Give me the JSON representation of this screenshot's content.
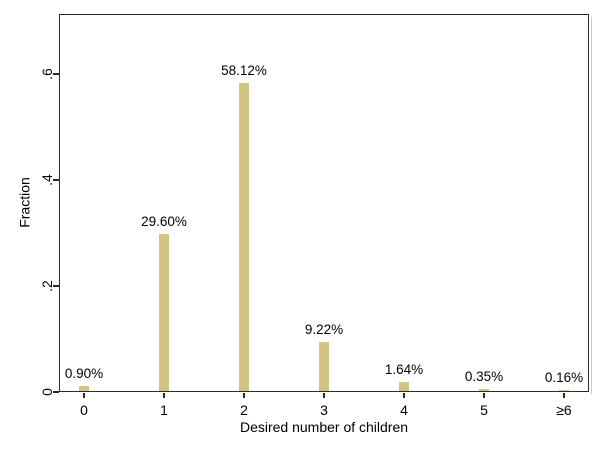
{
  "chart_data": {
    "type": "bar",
    "title": "",
    "categories": [
      "0",
      "1",
      "2",
      "3",
      "4",
      "5",
      "≥6"
    ],
    "values": [
      0.009,
      0.296,
      0.5812,
      0.0922,
      0.0164,
      0.0035,
      0.0016
    ],
    "bar_labels": [
      "0.90%",
      "29.60%",
      "58.12%",
      "9.22%",
      "1.64%",
      "0.35%",
      "0.16%"
    ],
    "xlabel": "Desired number of children",
    "ylabel": "Fraction",
    "yticks": [
      0,
      0.2,
      0.4,
      0.6
    ],
    "ytick_labels": [
      "0",
      ".2",
      ".4",
      ".6"
    ],
    "ylim": [
      0,
      0.713
    ],
    "grid": false,
    "legend_position": "none",
    "bar_color": "#d2c484",
    "axis_color": "#2b2b2b",
    "text_color": "#000000",
    "background_color": "#ffffff"
  }
}
